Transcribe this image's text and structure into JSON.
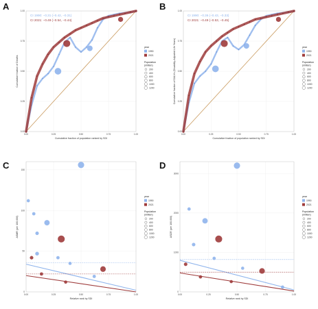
{
  "colors": {
    "y1990": "#8fb4ec",
    "y2021": "#9e3b3b",
    "diag": "#c99a5e",
    "grid": "#ececec"
  },
  "legend": {
    "year_title": "year",
    "years": [
      "1990",
      "2021"
    ],
    "pop_title": "Population\n(million)",
    "pop_values": [
      "200",
      "400",
      "600",
      "800",
      "1000",
      "1200"
    ]
  },
  "chart_data": [
    {
      "panel": "A",
      "type": "line",
      "xlabel": "Cumulative fraction of population ranked by SDI",
      "ylabel": "Cumulative fraction of Deaths",
      "xlim": [
        0,
        1
      ],
      "ylim": [
        0,
        1
      ],
      "x_ticks": [
        "0.00",
        "0.25",
        "0.50",
        "0.75",
        "1.00"
      ],
      "y_ticks": [
        "0.00",
        "0.25",
        "0.50",
        "0.75",
        "1.00"
      ],
      "ci_labels": [
        "CI 1990: −0.31 (−0.42, −0.31)",
        "CI 2021: −0.49 (−0.54, −0.44)"
      ],
      "diagonal": true,
      "series": [
        {
          "name": "1990",
          "x": [
            0,
            0.05,
            0.1,
            0.15,
            0.2,
            0.25,
            0.3,
            0.35,
            0.4,
            0.45,
            0.5,
            0.55,
            0.6,
            0.65,
            0.7,
            0.75,
            0.8,
            0.85,
            0.9,
            0.95,
            1
          ],
          "y": [
            0,
            0.22,
            0.38,
            0.44,
            0.48,
            0.54,
            0.64,
            0.74,
            0.78,
            0.7,
            0.66,
            0.7,
            0.76,
            0.86,
            0.93,
            0.96,
            0.97,
            0.98,
            0.985,
            0.99,
            1
          ]
        },
        {
          "name": "2021",
          "x": [
            0,
            0.05,
            0.1,
            0.15,
            0.2,
            0.25,
            0.3,
            0.35,
            0.4,
            0.45,
            0.5,
            0.55,
            0.6,
            0.65,
            0.7,
            0.75,
            0.8,
            0.85,
            0.9,
            0.95,
            1
          ],
          "y": [
            0,
            0.28,
            0.46,
            0.56,
            0.64,
            0.7,
            0.74,
            0.78,
            0.81,
            0.84,
            0.86,
            0.88,
            0.9,
            0.92,
            0.94,
            0.95,
            0.96,
            0.97,
            0.98,
            0.99,
            1
          ]
        }
      ],
      "points": [
        {
          "series": "1990",
          "x": 0.29,
          "y": 0.5,
          "pop": 700
        },
        {
          "series": "1990",
          "x": 0.58,
          "y": 0.69,
          "pop": 420
        },
        {
          "series": "2021",
          "x": 0.37,
          "y": 0.73,
          "pop": 800
        },
        {
          "series": "2021",
          "x": 0.86,
          "y": 0.93,
          "pop": 300
        }
      ]
    },
    {
      "panel": "B",
      "type": "line",
      "xlabel": "Cumulative fraction of population ranked by SDI",
      "ylabel": "Cumulative fraction of DALYs (Disability-Adjusted Life Years)",
      "xlim": [
        0,
        1
      ],
      "ylim": [
        0,
        1
      ],
      "x_ticks": [
        "0.00",
        "0.25",
        "0.50",
        "0.75",
        "1.00"
      ],
      "y_ticks": [
        "0.00",
        "0.25",
        "0.50",
        "0.75",
        "1.00"
      ],
      "ci_labels": [
        "CI 1990: −0.36 (−0.43, −0.33)",
        "CI 2021: −0.49 (−0.53, −0.45)"
      ],
      "diagonal": true,
      "series": [
        {
          "name": "1990",
          "x": [
            0,
            0.05,
            0.1,
            0.15,
            0.2,
            0.25,
            0.3,
            0.35,
            0.4,
            0.45,
            0.5,
            0.55,
            0.6,
            0.65,
            0.7,
            0.75,
            0.8,
            0.85,
            0.9,
            0.95,
            1
          ],
          "y": [
            0,
            0.24,
            0.4,
            0.46,
            0.5,
            0.56,
            0.66,
            0.75,
            0.78,
            0.71,
            0.68,
            0.72,
            0.8,
            0.88,
            0.93,
            0.96,
            0.97,
            0.98,
            0.985,
            0.99,
            1
          ]
        },
        {
          "name": "2021",
          "x": [
            0,
            0.05,
            0.1,
            0.15,
            0.2,
            0.25,
            0.3,
            0.35,
            0.4,
            0.45,
            0.5,
            0.55,
            0.6,
            0.65,
            0.7,
            0.75,
            0.8,
            0.85,
            0.9,
            0.95,
            1
          ],
          "y": [
            0,
            0.3,
            0.48,
            0.58,
            0.66,
            0.71,
            0.75,
            0.79,
            0.82,
            0.85,
            0.87,
            0.89,
            0.91,
            0.93,
            0.94,
            0.95,
            0.96,
            0.97,
            0.98,
            0.99,
            1
          ]
        }
      ],
      "points": [
        {
          "series": "1990",
          "x": 0.29,
          "y": 0.52,
          "pop": 700
        },
        {
          "series": "1990",
          "x": 0.57,
          "y": 0.71,
          "pop": 420
        },
        {
          "series": "2021",
          "x": 0.37,
          "y": 0.73,
          "pop": 800
        },
        {
          "series": "2021",
          "x": 0.86,
          "y": 0.93,
          "pop": 300
        }
      ]
    },
    {
      "panel": "C",
      "type": "scatter",
      "xlabel": "Relative rank by SDI",
      "ylabel": "ASMR (per 100,000)",
      "xlim": [
        0,
        1
      ],
      "ylim": [
        0,
        160
      ],
      "x_ticks": [
        "0.00",
        "0.25",
        "0.50",
        "0.75",
        "1.00"
      ],
      "y_ticks": [
        "0",
        "50",
        "100",
        "150"
      ],
      "series": [
        {
          "name": "1990",
          "fit_x": [
            0,
            1
          ],
          "fit_y": [
            34,
            2
          ],
          "mean_y": 36
        },
        {
          "name": "2021",
          "fit_x": [
            0,
            1
          ],
          "fit_y": [
            20,
            0
          ],
          "mean_y": 22
        }
      ],
      "points": [
        {
          "series": "1990",
          "x": 0.5,
          "y": 156,
          "pop": 600
        },
        {
          "series": "1990",
          "x": 0.19,
          "y": 85,
          "pop": 380
        },
        {
          "series": "1990",
          "x": 0.1,
          "y": 47,
          "pop": 100
        },
        {
          "series": "1990",
          "x": 0.02,
          "y": 112,
          "pop": 50
        },
        {
          "series": "1990",
          "x": 0.07,
          "y": 96,
          "pop": 60
        },
        {
          "series": "1990",
          "x": 0.1,
          "y": 72,
          "pop": 80
        },
        {
          "series": "1990",
          "x": 0.29,
          "y": 42,
          "pop": 60
        },
        {
          "series": "1990",
          "x": 0.4,
          "y": 35,
          "pop": 50
        },
        {
          "series": "1990",
          "x": 0.62,
          "y": 19,
          "pop": 60
        },
        {
          "series": "2021",
          "x": 0.32,
          "y": 65,
          "pop": 800
        },
        {
          "series": "2021",
          "x": 0.7,
          "y": 28,
          "pop": 420
        },
        {
          "series": "2021",
          "x": 0.05,
          "y": 42,
          "pop": 80
        },
        {
          "series": "2021",
          "x": 0.14,
          "y": 22,
          "pop": 60
        },
        {
          "series": "2021",
          "x": 0.36,
          "y": 12,
          "pop": 50
        }
      ]
    },
    {
      "panel": "D",
      "type": "scatter",
      "xlabel": "Relative rank by SDI",
      "ylabel": "ASDR (per 100,000)",
      "xlim": [
        0,
        1
      ],
      "ylim": [
        0,
        3300
      ],
      "x_ticks": [
        "0.00",
        "0.25",
        "0.50",
        "0.75",
        "1.00"
      ],
      "y_ticks": [
        "0",
        "1000",
        "2000",
        "3000"
      ],
      "series": [
        {
          "name": "1990",
          "fit_x": [
            0,
            1
          ],
          "fit_y": [
            800,
            50
          ],
          "mean_y": 820
        },
        {
          "name": "2021",
          "fit_x": [
            0,
            1
          ],
          "fit_y": [
            480,
            20
          ],
          "mean_y": 500
        }
      ],
      "points": [
        {
          "series": "1990",
          "x": 0.5,
          "y": 3200,
          "pop": 600
        },
        {
          "series": "1990",
          "x": 0.22,
          "y": 1800,
          "pop": 380
        },
        {
          "series": "1990",
          "x": 0.08,
          "y": 2100,
          "pop": 60
        },
        {
          "series": "1990",
          "x": 0.12,
          "y": 1200,
          "pop": 80
        },
        {
          "series": "1990",
          "x": 0.3,
          "y": 850,
          "pop": 60
        },
        {
          "series": "1990",
          "x": 0.55,
          "y": 600,
          "pop": 50
        },
        {
          "series": "1990",
          "x": 0.9,
          "y": 120,
          "pop": 60
        },
        {
          "series": "2021",
          "x": 0.34,
          "y": 1340,
          "pop": 800
        },
        {
          "series": "2021",
          "x": 0.72,
          "y": 530,
          "pop": 420
        },
        {
          "series": "2021",
          "x": 0.05,
          "y": 700,
          "pop": 80
        },
        {
          "series": "2021",
          "x": 0.18,
          "y": 380,
          "pop": 60
        },
        {
          "series": "2021",
          "x": 0.45,
          "y": 260,
          "pop": 50
        }
      ]
    }
  ]
}
